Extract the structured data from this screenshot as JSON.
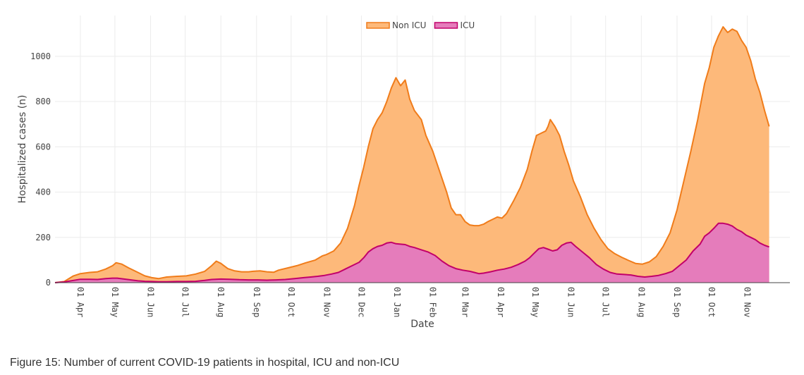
{
  "caption": "Figure 15: Number of current COVID-19 patients in hospital, ICU and non-ICU",
  "chart_data": {
    "type": "area",
    "stacked": true,
    "title": "",
    "xlabel": "Date",
    "ylabel": "Hospitalized cases (n)",
    "ylim": [
      0,
      1180
    ],
    "yticks": [
      0,
      200,
      400,
      600,
      800,
      1000
    ],
    "grid": true,
    "legend_position": "top-center",
    "x_range_days": [
      -22,
      616
    ],
    "xticks": [
      {
        "day": 0,
        "label": "01 Apr"
      },
      {
        "day": 30,
        "label": "01 May"
      },
      {
        "day": 61,
        "label": "01 Jun"
      },
      {
        "day": 91,
        "label": "01 Jul"
      },
      {
        "day": 122,
        "label": "01 Aug"
      },
      {
        "day": 153,
        "label": "01 Sep"
      },
      {
        "day": 183,
        "label": "01 Oct"
      },
      {
        "day": 214,
        "label": "01 Nov"
      },
      {
        "day": 244,
        "label": "01 Dec"
      },
      {
        "day": 275,
        "label": "01 Jan"
      },
      {
        "day": 306,
        "label": "01 Feb"
      },
      {
        "day": 334,
        "label": "01 Mar"
      },
      {
        "day": 365,
        "label": "01 Apr"
      },
      {
        "day": 395,
        "label": "01 May"
      },
      {
        "day": 426,
        "label": "01 Jun"
      },
      {
        "day": 456,
        "label": "01 Jul"
      },
      {
        "day": 487,
        "label": "01 Aug"
      },
      {
        "day": 518,
        "label": "01 Sep"
      },
      {
        "day": 548,
        "label": "01 Oct"
      },
      {
        "day": 579,
        "label": "01 Nov"
      }
    ],
    "series": [
      {
        "name": "Non ICU",
        "fill": "#fdb97a",
        "line": "#f07c1a",
        "points": [
          [
            -22,
            0
          ],
          [
            -14,
            5
          ],
          [
            -6,
            30
          ],
          [
            0,
            40
          ],
          [
            8,
            45
          ],
          [
            15,
            48
          ],
          [
            22,
            60
          ],
          [
            28,
            75
          ],
          [
            31,
            88
          ],
          [
            36,
            82
          ],
          [
            42,
            65
          ],
          [
            50,
            45
          ],
          [
            56,
            30
          ],
          [
            62,
            22
          ],
          [
            68,
            18
          ],
          [
            75,
            25
          ],
          [
            84,
            28
          ],
          [
            92,
            30
          ],
          [
            100,
            38
          ],
          [
            108,
            50
          ],
          [
            114,
            75
          ],
          [
            118,
            95
          ],
          [
            122,
            85
          ],
          [
            128,
            62
          ],
          [
            134,
            52
          ],
          [
            140,
            48
          ],
          [
            146,
            48
          ],
          [
            150,
            50
          ],
          [
            156,
            52
          ],
          [
            162,
            48
          ],
          [
            168,
            46
          ],
          [
            172,
            55
          ],
          [
            180,
            65
          ],
          [
            188,
            75
          ],
          [
            196,
            88
          ],
          [
            204,
            100
          ],
          [
            210,
            118
          ],
          [
            214,
            125
          ],
          [
            220,
            140
          ],
          [
            226,
            175
          ],
          [
            232,
            240
          ],
          [
            238,
            340
          ],
          [
            242,
            430
          ],
          [
            246,
            510
          ],
          [
            250,
            600
          ],
          [
            254,
            680
          ],
          [
            258,
            720
          ],
          [
            262,
            750
          ],
          [
            266,
            800
          ],
          [
            270,
            860
          ],
          [
            274,
            905
          ],
          [
            278,
            870
          ],
          [
            282,
            895
          ],
          [
            286,
            810
          ],
          [
            290,
            760
          ],
          [
            296,
            720
          ],
          [
            300,
            650
          ],
          [
            306,
            580
          ],
          [
            312,
            490
          ],
          [
            318,
            400
          ],
          [
            322,
            330
          ],
          [
            326,
            300
          ],
          [
            330,
            300
          ],
          [
            334,
            270
          ],
          [
            338,
            255
          ],
          [
            342,
            252
          ],
          [
            346,
            252
          ],
          [
            350,
            258
          ],
          [
            354,
            270
          ],
          [
            358,
            280
          ],
          [
            362,
            290
          ],
          [
            366,
            285
          ],
          [
            370,
            305
          ],
          [
            376,
            360
          ],
          [
            382,
            420
          ],
          [
            388,
            500
          ],
          [
            392,
            580
          ],
          [
            396,
            650
          ],
          [
            400,
            660
          ],
          [
            404,
            670
          ],
          [
            406,
            690
          ],
          [
            408,
            720
          ],
          [
            412,
            690
          ],
          [
            416,
            650
          ],
          [
            420,
            580
          ],
          [
            424,
            520
          ],
          [
            428,
            450
          ],
          [
            434,
            380
          ],
          [
            440,
            300
          ],
          [
            446,
            240
          ],
          [
            452,
            190
          ],
          [
            458,
            150
          ],
          [
            464,
            128
          ],
          [
            470,
            112
          ],
          [
            476,
            98
          ],
          [
            482,
            85
          ],
          [
            488,
            82
          ],
          [
            494,
            92
          ],
          [
            500,
            115
          ],
          [
            506,
            160
          ],
          [
            512,
            220
          ],
          [
            518,
            320
          ],
          [
            524,
            450
          ],
          [
            530,
            580
          ],
          [
            536,
            720
          ],
          [
            542,
            880
          ],
          [
            546,
            950
          ],
          [
            550,
            1040
          ],
          [
            554,
            1090
          ],
          [
            558,
            1130
          ],
          [
            562,
            1105
          ],
          [
            566,
            1120
          ],
          [
            570,
            1110
          ],
          [
            574,
            1070
          ],
          [
            578,
            1040
          ],
          [
            582,
            980
          ],
          [
            586,
            900
          ],
          [
            590,
            840
          ],
          [
            594,
            760
          ],
          [
            598,
            690
          ]
        ]
      },
      {
        "name": "ICU",
        "fill": "#e57cbb",
        "line": "#c2006a",
        "points": [
          [
            -22,
            0
          ],
          [
            -14,
            3
          ],
          [
            -6,
            10
          ],
          [
            0,
            15
          ],
          [
            8,
            15
          ],
          [
            15,
            14
          ],
          [
            22,
            18
          ],
          [
            28,
            20
          ],
          [
            32,
            20
          ],
          [
            38,
            16
          ],
          [
            44,
            12
          ],
          [
            50,
            8
          ],
          [
            56,
            6
          ],
          [
            62,
            5
          ],
          [
            68,
            4
          ],
          [
            75,
            4
          ],
          [
            84,
            5
          ],
          [
            92,
            5
          ],
          [
            100,
            6
          ],
          [
            108,
            10
          ],
          [
            114,
            14
          ],
          [
            122,
            16
          ],
          [
            130,
            15
          ],
          [
            138,
            13
          ],
          [
            146,
            12
          ],
          [
            154,
            12
          ],
          [
            162,
            11
          ],
          [
            170,
            12
          ],
          [
            178,
            14
          ],
          [
            186,
            18
          ],
          [
            194,
            22
          ],
          [
            200,
            25
          ],
          [
            206,
            28
          ],
          [
            212,
            32
          ],
          [
            218,
            38
          ],
          [
            224,
            45
          ],
          [
            230,
            60
          ],
          [
            236,
            75
          ],
          [
            242,
            90
          ],
          [
            246,
            110
          ],
          [
            250,
            135
          ],
          [
            254,
            150
          ],
          [
            258,
            160
          ],
          [
            262,
            165
          ],
          [
            266,
            175
          ],
          [
            270,
            178
          ],
          [
            274,
            172
          ],
          [
            278,
            170
          ],
          [
            282,
            168
          ],
          [
            286,
            160
          ],
          [
            290,
            155
          ],
          [
            296,
            145
          ],
          [
            302,
            135
          ],
          [
            308,
            120
          ],
          [
            314,
            95
          ],
          [
            320,
            75
          ],
          [
            326,
            62
          ],
          [
            332,
            55
          ],
          [
            338,
            50
          ],
          [
            342,
            45
          ],
          [
            346,
            40
          ],
          [
            350,
            42
          ],
          [
            356,
            48
          ],
          [
            362,
            55
          ],
          [
            368,
            60
          ],
          [
            374,
            68
          ],
          [
            380,
            80
          ],
          [
            386,
            95
          ],
          [
            390,
            110
          ],
          [
            394,
            130
          ],
          [
            398,
            150
          ],
          [
            402,
            155
          ],
          [
            406,
            148
          ],
          [
            410,
            140
          ],
          [
            414,
            145
          ],
          [
            418,
            165
          ],
          [
            422,
            175
          ],
          [
            426,
            178
          ],
          [
            430,
            160
          ],
          [
            436,
            135
          ],
          [
            442,
            110
          ],
          [
            448,
            80
          ],
          [
            454,
            60
          ],
          [
            460,
            45
          ],
          [
            466,
            38
          ],
          [
            472,
            36
          ],
          [
            478,
            34
          ],
          [
            484,
            28
          ],
          [
            490,
            25
          ],
          [
            496,
            28
          ],
          [
            502,
            32
          ],
          [
            508,
            40
          ],
          [
            514,
            50
          ],
          [
            520,
            75
          ],
          [
            526,
            100
          ],
          [
            532,
            140
          ],
          [
            538,
            170
          ],
          [
            542,
            205
          ],
          [
            546,
            220
          ],
          [
            550,
            240
          ],
          [
            554,
            262
          ],
          [
            558,
            262
          ],
          [
            562,
            258
          ],
          [
            566,
            250
          ],
          [
            570,
            235
          ],
          [
            574,
            225
          ],
          [
            578,
            210
          ],
          [
            582,
            200
          ],
          [
            586,
            190
          ],
          [
            590,
            175
          ],
          [
            594,
            165
          ],
          [
            598,
            158
          ]
        ]
      }
    ]
  }
}
